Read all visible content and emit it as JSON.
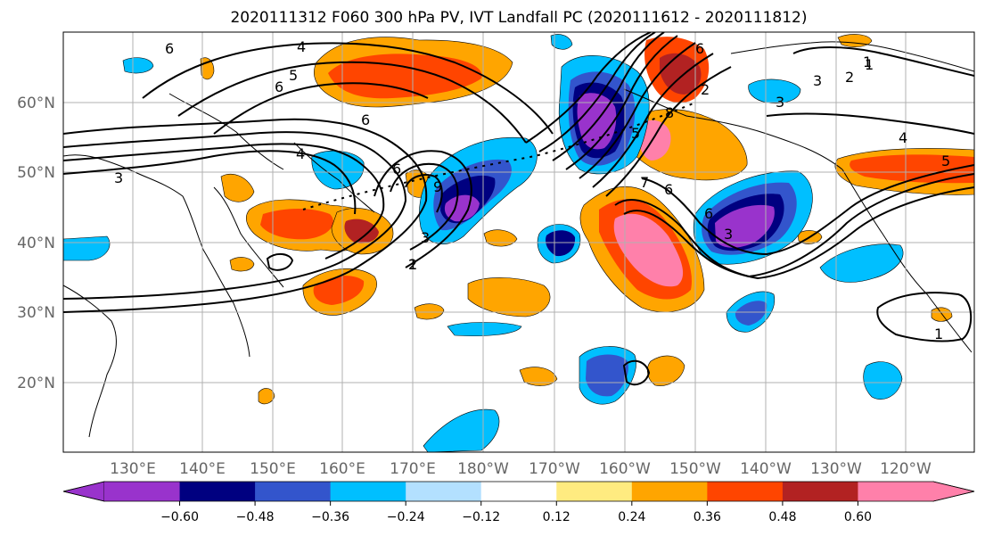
{
  "title": "2020111312 F060 300 hPa PV, IVT Landfall PC (2020111612 - 2020111812)",
  "map": {
    "lat_labels": [
      "60°N",
      "50°N",
      "40°N",
      "30°N",
      "20°N"
    ],
    "lon_labels": [
      "130°E",
      "140°E",
      "150°E",
      "160°E",
      "170°E",
      "180°W",
      "170°W",
      "160°W",
      "150°W",
      "140°W",
      "130°W",
      "120°W"
    ],
    "gridlines": true,
    "contour_labels": [
      "6",
      "4",
      "5",
      "6",
      "4",
      "3",
      "6",
      "6",
      "2",
      "3",
      "1",
      "9",
      "3",
      "2",
      "1",
      "6",
      "6",
      "7",
      "5",
      "8",
      "6",
      "3",
      "1",
      "2",
      "3",
      "4",
      "5",
      "1"
    ]
  },
  "colorbar": {
    "tick_labels": [
      "−0.60",
      "−0.48",
      "−0.36",
      "−0.24",
      "−0.12",
      "0.12",
      "0.24",
      "0.36",
      "0.48",
      "0.60"
    ],
    "colors": [
      "#9933cc",
      "#000080",
      "#3355cc",
      "#00bfff",
      "#b3e0ff",
      "#ffffff",
      "#ffeb80",
      "#ffa500",
      "#ff4500",
      "#b22222",
      "#ff80aa"
    ],
    "extend": "both"
  }
}
